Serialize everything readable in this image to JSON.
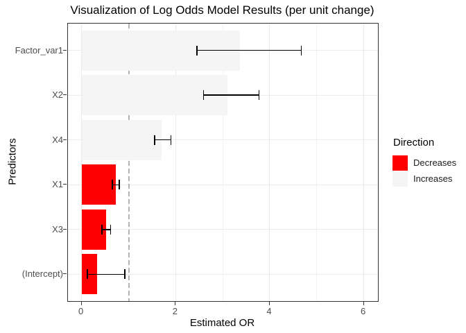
{
  "title": "Visualization of Log Odds Model Results (per unit change)",
  "axes": {
    "x_label": "Estimated OR",
    "y_label": "Predictors"
  },
  "legend": {
    "title": "Direction",
    "items": [
      {
        "label": "Decreases",
        "color": "#FF0000"
      },
      {
        "label": "Increases",
        "color": "#F5F5F5"
      }
    ]
  },
  "chart_data": {
    "type": "bar",
    "orientation": "horizontal",
    "title": "Visualization of Log Odds Model Results (per unit change)",
    "xlabel": "Estimated OR",
    "ylabel": "Predictors",
    "categories": [
      "Factor_var1",
      "X2",
      "X4",
      "X1",
      "X3",
      "(Intercept)"
    ],
    "series": [
      {
        "name": "Estimated OR",
        "values": [
          3.37,
          3.1,
          1.7,
          0.73,
          0.52,
          0.33
        ],
        "ci_low": [
          2.45,
          2.59,
          1.55,
          0.65,
          0.43,
          0.12
        ],
        "ci_high": [
          4.67,
          3.77,
          1.9,
          0.8,
          0.62,
          0.92
        ]
      }
    ],
    "directions": [
      "Increases",
      "Increases",
      "Increases",
      "Decreases",
      "Decreases",
      "Decreases"
    ],
    "direction_colors": {
      "Decreases": "#FF0000",
      "Increases": "#F5F5F5"
    },
    "reference_line": {
      "x": 1,
      "color": "#B3B3B3",
      "style": "dashed"
    },
    "x_ticks": [
      0,
      2,
      4,
      6
    ],
    "x_minor_ticks": [
      1,
      3,
      5
    ],
    "x_range": [
      -0.29,
      6.3
    ],
    "bar_width_fraction": 0.9,
    "grid": true,
    "legend_position": "right"
  }
}
